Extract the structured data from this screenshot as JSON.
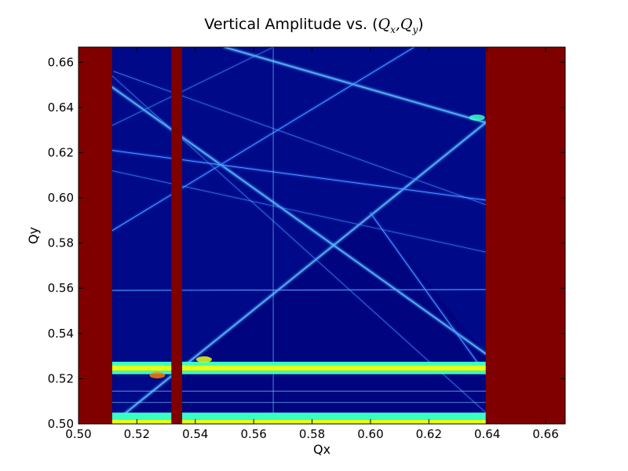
{
  "chart_data": {
    "type": "heatmap",
    "title": {
      "prefix": "Vertical Amplitude vs. (",
      "var1": "Q",
      "sub1": "x",
      "sep": ",",
      "var2": "Q",
      "sub2": "y",
      "suffix": ")"
    },
    "xlabel": "Qx",
    "ylabel": "Qy",
    "xlim": [
      0.5,
      0.6667
    ],
    "ylim": [
      0.5,
      0.6667
    ],
    "xticks": [
      "0.50",
      "0.52",
      "0.54",
      "0.56",
      "0.58",
      "0.60",
      "0.62",
      "0.64",
      "0.66"
    ],
    "yticks": [
      "0.50",
      "0.52",
      "0.54",
      "0.56",
      "0.58",
      "0.60",
      "0.62",
      "0.64",
      "0.66"
    ],
    "grid": false,
    "colormap": "jet",
    "colors": {
      "saturated": "#800000",
      "background": "#000a88",
      "background_low": "#00007a",
      "line": "#1f5fff",
      "line_bright": "#3fa8ff",
      "band_cyan": "#39ffc4",
      "band_yellow": "#e8ff10",
      "band_orange": "#ff7a00"
    },
    "saturated_regions": [
      {
        "qx": [
          0.5,
          0.5115
        ],
        "qy": [
          0.5,
          0.6667
        ]
      },
      {
        "qx": [
          0.5318,
          0.5355
        ],
        "qy": [
          0.5,
          0.6667
        ]
      },
      {
        "qx": [
          0.6395,
          0.6667
        ],
        "qy": [
          0.5,
          0.6667
        ]
      }
    ],
    "resonance_lines": [
      {
        "from": [
          0.5115,
          0.5
        ],
        "to": [
          0.6395,
          0.6333
        ],
        "strength": "strong"
      },
      {
        "from": [
          0.5115,
          0.649
        ],
        "to": [
          0.6395,
          0.531
        ],
        "strength": "strong"
      },
      {
        "from": [
          0.55,
          0.6667
        ],
        "to": [
          0.6395,
          0.6333
        ],
        "strength": "strong"
      },
      {
        "from": [
          0.615,
          0.6667
        ],
        "to": [
          0.5115,
          0.5855
        ],
        "strength": "medium"
      },
      {
        "from": [
          0.5115,
          0.621
        ],
        "to": [
          0.6395,
          0.599
        ],
        "strength": "medium"
      },
      {
        "from": [
          0.5115,
          0.612
        ],
        "to": [
          0.6395,
          0.576
        ],
        "strength": "weak"
      },
      {
        "from": [
          0.5115,
          0.654
        ],
        "to": [
          0.6395,
          0.505
        ],
        "strength": "weak"
      },
      {
        "from": [
          0.512,
          0.656
        ],
        "to": [
          0.6395,
          0.597
        ],
        "strength": "weak"
      },
      {
        "from": [
          0.5115,
          0.559
        ],
        "to": [
          0.6395,
          0.5595
        ],
        "strength": "medium"
      },
      {
        "from": [
          0.5115,
          0.5145
        ],
        "to": [
          0.6395,
          0.5145
        ],
        "strength": "medium"
      },
      {
        "from": [
          0.5115,
          0.5095
        ],
        "to": [
          0.6395,
          0.5095
        ],
        "strength": "medium"
      },
      {
        "from": [
          0.5667,
          0.5
        ],
        "to": [
          0.5667,
          0.6667
        ],
        "strength": "medium"
      },
      {
        "from": [
          0.6,
          0.5933
        ],
        "to": [
          0.6395,
          0.522
        ],
        "strength": "medium"
      },
      {
        "from": [
          0.5115,
          0.632
        ],
        "to": [
          0.5667,
          0.6667
        ],
        "strength": "weak"
      }
    ],
    "bands": [
      {
        "qy": [
          0.5235,
          0.526
        ],
        "qx": [
          0.5115,
          0.6395
        ],
        "color": "band_yellow"
      },
      {
        "qy": [
          0.522,
          0.5235
        ],
        "qx": [
          0.5115,
          0.6395
        ],
        "color": "band_cyan"
      },
      {
        "qy": [
          0.526,
          0.5275
        ],
        "qx": [
          0.5115,
          0.6395
        ],
        "color": "band_cyan"
      },
      {
        "qy": [
          0.5,
          0.502
        ],
        "qx": [
          0.5115,
          0.6395
        ],
        "color": "band_yellow"
      },
      {
        "qy": [
          0.502,
          0.505
        ],
        "qx": [
          0.5115,
          0.6395
        ],
        "color": "band_cyan"
      }
    ],
    "hotspots": [
      {
        "qx": 0.527,
        "qy": 0.5215,
        "color": "band_orange"
      },
      {
        "qx": 0.543,
        "qy": 0.5285,
        "color": "band_yellow"
      },
      {
        "qx": 0.6365,
        "qy": 0.6355,
        "color": "band_cyan"
      }
    ]
  }
}
